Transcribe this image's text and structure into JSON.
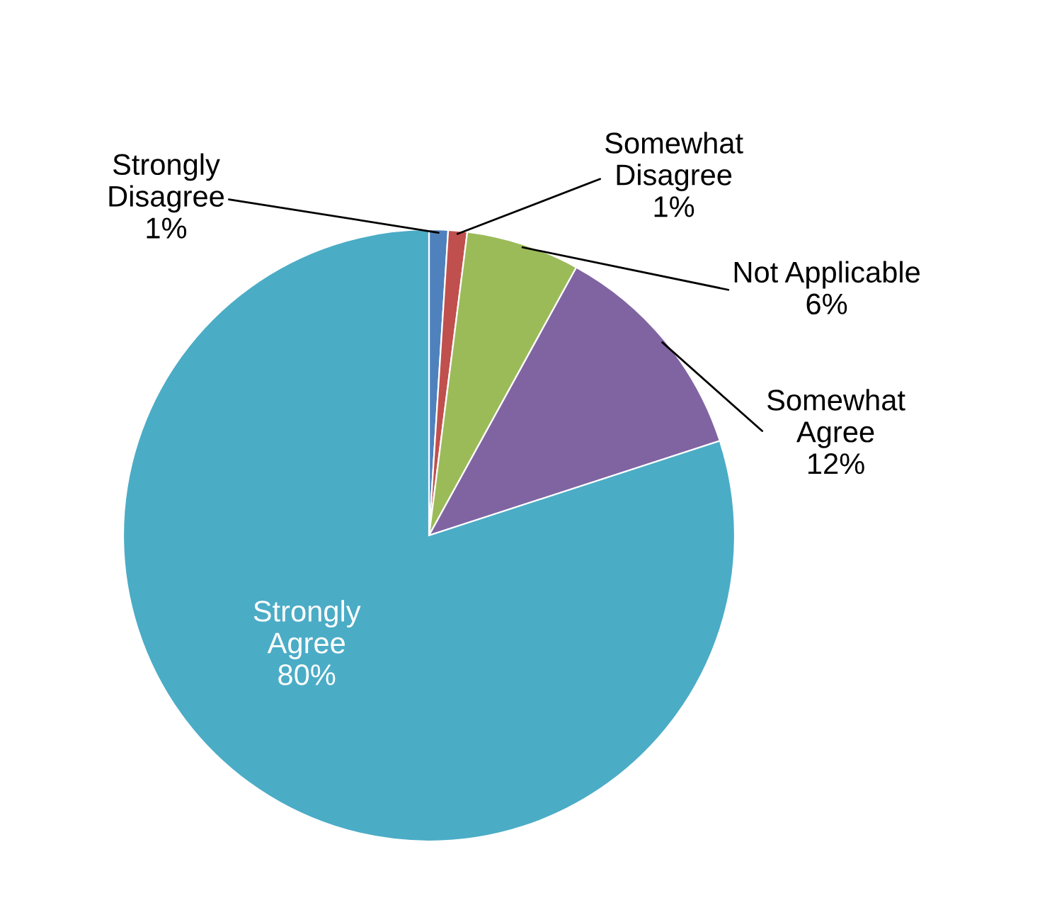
{
  "chart_data": {
    "type": "pie",
    "categories": [
      "Strongly\nDisagree",
      "Somewhat\nDisagree",
      "Not Applicable",
      "Somewhat\nAgree",
      "Strongly\nAgree"
    ],
    "values": [
      1,
      1,
      6,
      12,
      80
    ],
    "value_labels": [
      "1%",
      "1%",
      "6%",
      "12%",
      "80%"
    ],
    "colors": [
      "#4f81bd",
      "#c0504d",
      "#9bbb59",
      "#8064a2",
      "#4bacc6"
    ],
    "legend": false
  }
}
